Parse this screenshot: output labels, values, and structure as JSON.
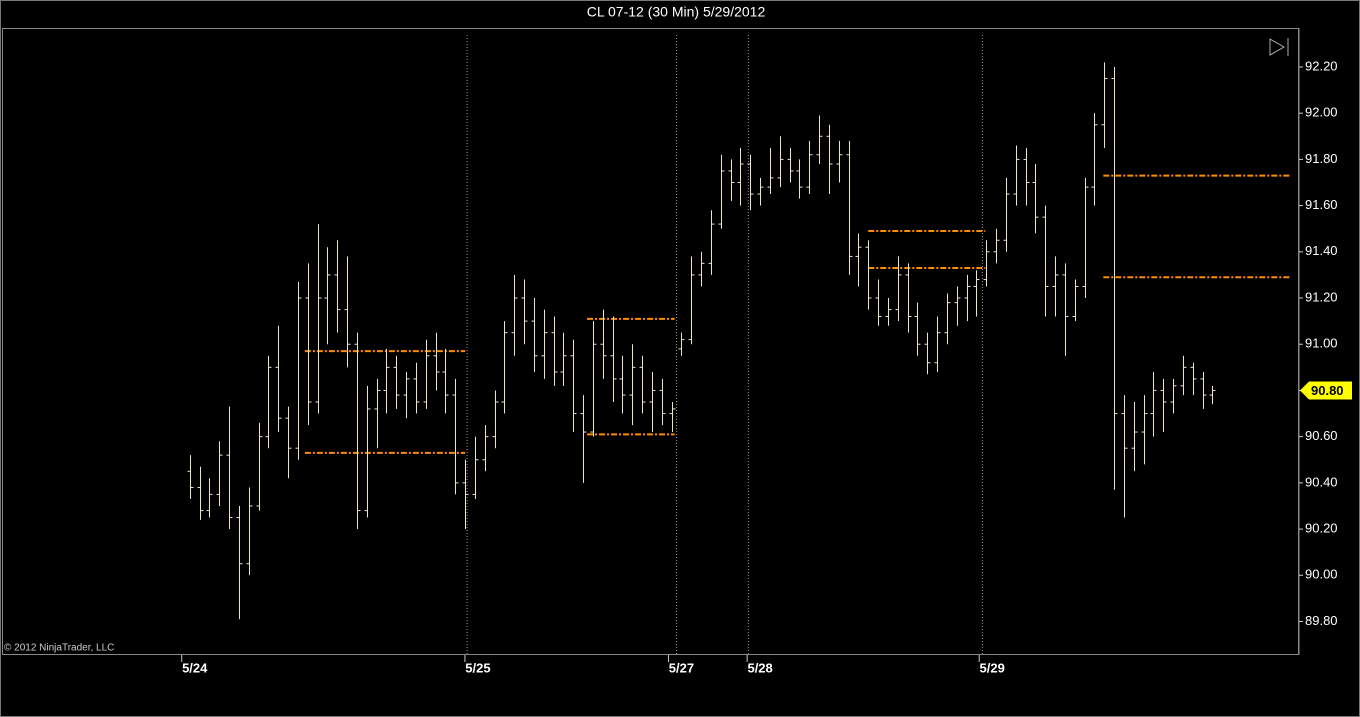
{
  "chart_data": {
    "type": "ohlc",
    "title": "CL 07-12 (30 Min)  5/29/2012",
    "copyright": "© 2012 NinjaTrader, LLC",
    "color": "#ece4cc",
    "level_color": "#ff8c00",
    "ylim": [
      89.655,
      92.36
    ],
    "yticks": [
      {
        "value": 89.8,
        "label": "89.80"
      },
      {
        "value": 90,
        "label": "90.00"
      },
      {
        "value": 90.2,
        "label": "90.20"
      },
      {
        "value": 90.4,
        "label": "90.40"
      },
      {
        "value": 90.6,
        "label": "90.60"
      },
      {
        "value": 90.8,
        "label": "90.80"
      },
      {
        "value": 91,
        "label": "91.00"
      },
      {
        "value": 91.2,
        "label": "91.20"
      },
      {
        "value": 91.4,
        "label": "91.40"
      },
      {
        "value": 91.6,
        "label": "91.60"
      },
      {
        "value": 91.8,
        "label": "91.80"
      },
      {
        "value": 92,
        "label": "92.00"
      },
      {
        "value": 92.2,
        "label": "92.20"
      }
    ],
    "xlim": [
      -19.1,
      112.7
    ],
    "xticks": [
      {
        "value": 0.5,
        "label": "5/24"
      },
      {
        "value": 29.3,
        "label": "5/25"
      },
      {
        "value": 50,
        "label": "5/27"
      },
      {
        "value": 58,
        "label": "5/28"
      },
      {
        "value": 81.6,
        "label": "5/29"
      }
    ],
    "session_breaks": [
      28.2,
      49.5,
      56.8,
      80.6
    ],
    "last_price": {
      "value": 90.8,
      "label": "90.80"
    },
    "levels": [
      {
        "x": [
          11.7,
          28
        ],
        "value": 90.97
      },
      {
        "x": [
          11.7,
          28
        ],
        "value": 90.53
      },
      {
        "x": [
          40.4,
          49.3
        ],
        "value": 91.11
      },
      {
        "x": [
          40.4,
          49.3
        ],
        "value": 90.61
      },
      {
        "x": [
          69,
          80.9
        ],
        "value": 91.49
      },
      {
        "x": [
          69,
          80.9
        ],
        "value": 91.33
      },
      {
        "x": [
          92.9,
          111.9
        ],
        "value": 91.73
      },
      {
        "x": [
          92.9,
          111.9
        ],
        "value": 91.29
      }
    ],
    "x": [
      0,
      1,
      2,
      3,
      4,
      5,
      6,
      7,
      8,
      9,
      10,
      11,
      12,
      13,
      14,
      15,
      16,
      17,
      18,
      19,
      20,
      21,
      22,
      23,
      24,
      25,
      26,
      27,
      28,
      29,
      30,
      31,
      32,
      33,
      34,
      35,
      36,
      37,
      38,
      39,
      40,
      41,
      42,
      43,
      44,
      45,
      46,
      47,
      48,
      49,
      50,
      51,
      52,
      53,
      54,
      55,
      56,
      57,
      58,
      59,
      60,
      61,
      62,
      63,
      64,
      65,
      66,
      67,
      68,
      69,
      70,
      71,
      72,
      73,
      74,
      75,
      76,
      77,
      78,
      79,
      80,
      81,
      82,
      83,
      84,
      85,
      86,
      87,
      88,
      89,
      90,
      91,
      92,
      93,
      94,
      95,
      96,
      97,
      98,
      99,
      100,
      101,
      102,
      103,
      104
    ],
    "bars": [
      [
        90.45,
        90.52,
        90.33,
        90.38
      ],
      [
        90.38,
        90.47,
        90.24,
        90.28
      ],
      [
        90.28,
        90.42,
        90.25,
        90.35
      ],
      [
        90.35,
        90.58,
        90.3,
        90.52
      ],
      [
        90.52,
        90.73,
        90.2,
        90.25
      ],
      [
        90.25,
        90.3,
        89.81,
        90.05
      ],
      [
        90.05,
        90.38,
        90.0,
        90.3
      ],
      [
        90.3,
        90.66,
        90.28,
        90.6
      ],
      [
        90.6,
        90.95,
        90.55,
        90.9
      ],
      [
        90.9,
        91.08,
        90.62,
        90.68
      ],
      [
        90.68,
        90.73,
        90.42,
        90.55
      ],
      [
        90.55,
        91.27,
        90.5,
        91.2
      ],
      [
        91.2,
        91.35,
        90.65,
        90.75
      ],
      [
        90.75,
        91.52,
        90.7,
        91.2
      ],
      [
        91.2,
        91.42,
        91.0,
        91.3
      ],
      [
        91.3,
        91.45,
        91.05,
        91.15
      ],
      [
        91.15,
        91.38,
        90.9,
        91.0
      ],
      [
        91.0,
        91.05,
        90.2,
        90.28
      ],
      [
        90.28,
        90.82,
        90.25,
        90.72
      ],
      [
        90.72,
        90.85,
        90.55,
        90.8
      ],
      [
        90.8,
        90.98,
        90.7,
        90.9
      ],
      [
        90.9,
        90.95,
        90.72,
        90.78
      ],
      [
        90.78,
        90.88,
        90.68,
        90.85
      ],
      [
        90.85,
        90.92,
        90.7,
        90.75
      ],
      [
        90.75,
        91.02,
        90.72,
        90.95
      ],
      [
        90.95,
        91.05,
        90.8,
        90.88
      ],
      [
        90.88,
        90.98,
        90.7,
        90.78
      ],
      [
        90.78,
        90.85,
        90.35,
        90.4
      ],
      [
        90.4,
        90.5,
        90.2,
        90.35
      ],
      [
        90.35,
        90.6,
        90.33,
        90.5
      ],
      [
        90.5,
        90.65,
        90.45,
        90.6
      ],
      [
        90.6,
        90.8,
        90.55,
        90.75
      ],
      [
        90.75,
        91.1,
        90.7,
        91.05
      ],
      [
        91.05,
        91.3,
        90.95,
        91.2
      ],
      [
        91.2,
        91.28,
        91.0,
        91.1
      ],
      [
        91.1,
        91.2,
        90.88,
        90.95
      ],
      [
        90.95,
        91.15,
        90.85,
        91.05
      ],
      [
        91.05,
        91.12,
        90.82,
        90.88
      ],
      [
        90.88,
        91.05,
        90.82,
        90.95
      ],
      [
        90.95,
        91.02,
        90.62,
        90.7
      ],
      [
        90.7,
        90.78,
        90.4,
        90.62
      ],
      [
        90.62,
        91.1,
        90.6,
        91.0
      ],
      [
        91.0,
        91.15,
        90.85,
        90.95
      ],
      [
        90.95,
        91.12,
        90.75,
        90.85
      ],
      [
        90.85,
        90.95,
        90.7,
        90.78
      ],
      [
        90.78,
        91.0,
        90.65,
        90.9
      ],
      [
        90.9,
        90.95,
        90.7,
        90.75
      ],
      [
        90.75,
        90.88,
        90.62,
        90.8
      ],
      [
        90.8,
        90.85,
        90.65,
        90.7
      ],
      [
        90.7,
        90.75,
        90.62,
        90.72
      ],
      [
        90.98,
        91.05,
        90.95,
        91.02
      ],
      [
        91.02,
        91.38,
        91.0,
        91.3
      ],
      [
        91.3,
        91.4,
        91.25,
        91.35
      ],
      [
        91.35,
        91.58,
        91.3,
        91.52
      ],
      [
        91.52,
        91.82,
        91.5,
        91.75
      ],
      [
        91.75,
        91.8,
        91.62,
        91.7
      ],
      [
        91.7,
        91.85,
        91.6,
        91.78
      ],
      [
        91.78,
        91.82,
        91.58,
        91.65
      ],
      [
        91.65,
        91.72,
        91.6,
        91.68
      ],
      [
        91.68,
        91.85,
        91.65,
        91.72
      ],
      [
        91.72,
        91.9,
        91.68,
        91.8
      ],
      [
        91.8,
        91.85,
        91.7,
        91.75
      ],
      [
        91.75,
        91.8,
        91.63,
        91.68
      ],
      [
        91.68,
        91.88,
        91.65,
        91.82
      ],
      [
        91.82,
        91.99,
        91.78,
        91.9
      ],
      [
        91.9,
        91.95,
        91.65,
        91.78
      ],
      [
        91.78,
        91.88,
        91.7,
        91.82
      ],
      [
        91.82,
        91.88,
        91.3,
        91.38
      ],
      [
        91.38,
        91.48,
        91.25,
        91.42
      ],
      [
        91.42,
        91.45,
        91.15,
        91.2
      ],
      [
        91.2,
        91.28,
        91.08,
        91.12
      ],
      [
        91.12,
        91.2,
        91.08,
        91.15
      ],
      [
        91.15,
        91.38,
        91.1,
        91.3
      ],
      [
        91.3,
        91.35,
        91.05,
        91.12
      ],
      [
        91.12,
        91.18,
        90.95,
        91.0
      ],
      [
        91.0,
        91.05,
        90.87,
        90.92
      ],
      [
        90.92,
        91.12,
        90.88,
        91.05
      ],
      [
        91.05,
        91.22,
        91.0,
        91.18
      ],
      [
        91.18,
        91.25,
        91.08,
        91.2
      ],
      [
        91.2,
        91.3,
        91.1,
        91.25
      ],
      [
        91.25,
        91.32,
        91.12,
        91.28
      ],
      [
        91.28,
        91.45,
        91.25,
        91.4
      ],
      [
        91.4,
        91.5,
        91.35,
        91.45
      ],
      [
        91.45,
        91.72,
        91.4,
        91.65
      ],
      [
        91.65,
        91.86,
        91.6,
        91.8
      ],
      [
        91.8,
        91.85,
        91.6,
        91.7
      ],
      [
        91.7,
        91.78,
        91.48,
        91.55
      ],
      [
        91.55,
        91.6,
        91.12,
        91.25
      ],
      [
        91.25,
        91.38,
        91.12,
        91.3
      ],
      [
        91.3,
        91.35,
        90.95,
        91.12
      ],
      [
        91.12,
        91.28,
        91.1,
        91.25
      ],
      [
        91.25,
        91.72,
        91.2,
        91.68
      ],
      [
        91.68,
        92.0,
        91.6,
        91.95
      ],
      [
        91.95,
        92.22,
        91.85,
        92.15
      ],
      [
        92.15,
        92.2,
        90.37,
        90.7
      ],
      [
        90.7,
        90.78,
        90.25,
        90.55
      ],
      [
        90.55,
        90.75,
        90.45,
        90.62
      ],
      [
        90.62,
        90.78,
        90.48,
        90.7
      ],
      [
        90.7,
        90.88,
        90.6,
        90.8
      ],
      [
        90.8,
        90.85,
        90.62,
        90.75
      ],
      [
        90.75,
        90.85,
        90.7,
        90.82
      ],
      [
        90.82,
        90.95,
        90.78,
        90.9
      ],
      [
        90.9,
        90.92,
        90.78,
        90.85
      ],
      [
        90.85,
        90.88,
        90.72,
        90.78
      ],
      [
        90.78,
        90.82,
        90.74,
        90.8
      ]
    ]
  }
}
